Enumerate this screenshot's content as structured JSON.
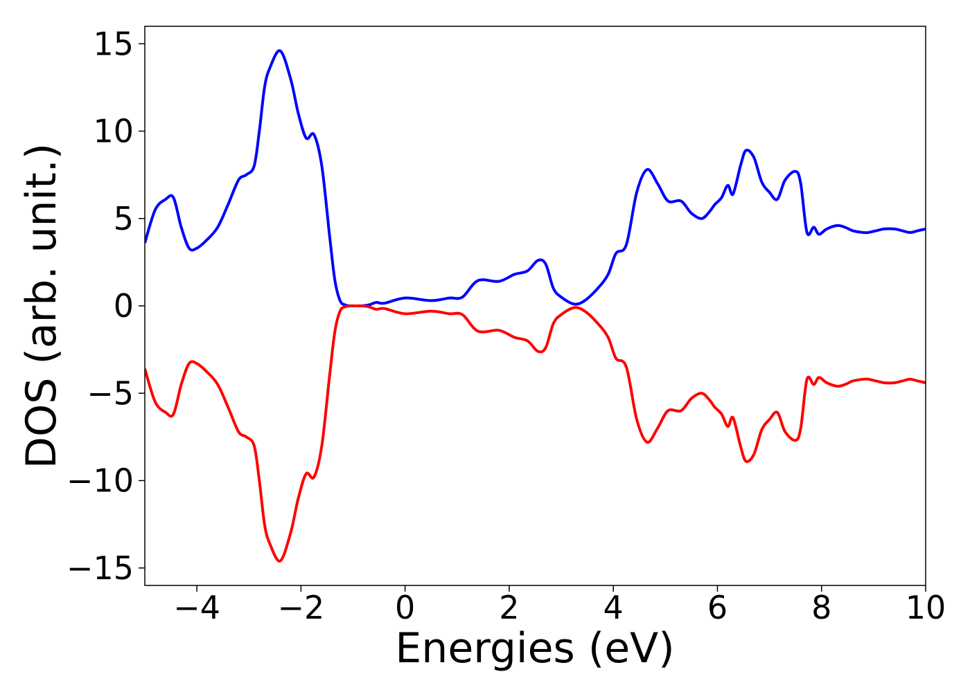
{
  "chart_data": {
    "type": "line",
    "xlabel": "Energies (eV)",
    "ylabel": "DOS (arb. unit.)",
    "xlim": [
      -5,
      10
    ],
    "ylim": [
      -16,
      16
    ],
    "grid": false,
    "x_ticks": [
      -4,
      -2,
      0,
      2,
      4,
      6,
      8,
      10
    ],
    "x_tick_labels": [
      "−4",
      "−2",
      "0",
      "2",
      "4",
      "6",
      "8",
      "10"
    ],
    "y_ticks": [
      15,
      10,
      5,
      0,
      -5,
      -10,
      -15
    ],
    "y_tick_labels": [
      "15",
      "10",
      "5",
      "0",
      "−5",
      "−10",
      "−15"
    ],
    "series": [
      {
        "color": "#0000ff",
        "x": [
          -5.0,
          -4.8,
          -4.6,
          -4.45,
          -4.3,
          -4.15,
          -4.0,
          -3.8,
          -3.6,
          -3.4,
          -3.2,
          -3.05,
          -2.9,
          -2.8,
          -2.7,
          -2.6,
          -2.4,
          -2.2,
          -2.05,
          -1.9,
          -1.75,
          -1.6,
          -1.45,
          -1.35,
          -1.25,
          -1.15,
          -1.05,
          -0.95,
          -0.85,
          -0.7,
          -0.55,
          -0.4,
          0.0,
          0.5,
          0.85,
          1.1,
          1.4,
          1.8,
          2.1,
          2.35,
          2.55,
          2.7,
          2.85,
          3.0,
          3.25,
          3.45,
          3.7,
          3.9,
          4.05,
          4.25,
          4.45,
          4.65,
          4.85,
          5.05,
          5.3,
          5.5,
          5.7,
          5.85,
          5.95,
          6.08,
          6.2,
          6.3,
          6.45,
          6.55,
          6.7,
          6.85,
          7.0,
          7.15,
          7.3,
          7.5,
          7.6,
          7.72,
          7.85,
          7.95,
          8.1,
          8.3,
          8.45,
          8.6,
          8.8,
          8.9,
          9.05,
          9.2,
          9.4,
          9.55,
          9.7,
          9.85,
          10.0
        ],
        "y": [
          3.6,
          5.5,
          6.1,
          6.2,
          4.5,
          3.3,
          3.3,
          3.8,
          4.5,
          5.8,
          7.2,
          7.5,
          8.0,
          10.0,
          12.5,
          13.6,
          14.6,
          13.0,
          11.0,
          9.6,
          9.8,
          8.0,
          4.0,
          1.5,
          0.3,
          0.05,
          0.0,
          0.0,
          0.0,
          0.05,
          0.2,
          0.15,
          0.45,
          0.3,
          0.45,
          0.5,
          1.45,
          1.4,
          1.8,
          2.0,
          2.6,
          2.4,
          1.0,
          0.5,
          0.1,
          0.3,
          1.0,
          1.8,
          3.0,
          3.5,
          6.5,
          7.8,
          7.0,
          6.0,
          6.0,
          5.3,
          5.0,
          5.4,
          5.8,
          6.2,
          6.9,
          6.4,
          8.1,
          8.9,
          8.5,
          7.1,
          6.5,
          6.1,
          7.2,
          7.7,
          7.0,
          4.2,
          4.5,
          4.1,
          4.4,
          4.6,
          4.5,
          4.3,
          4.2,
          4.2,
          4.3,
          4.4,
          4.4,
          4.3,
          4.2,
          4.3,
          4.4
        ]
      },
      {
        "color": "#ff0000",
        "x": [
          -5.0,
          -4.8,
          -4.6,
          -4.45,
          -4.3,
          -4.15,
          -4.0,
          -3.8,
          -3.6,
          -3.4,
          -3.2,
          -3.05,
          -2.9,
          -2.8,
          -2.7,
          -2.6,
          -2.4,
          -2.2,
          -2.05,
          -1.9,
          -1.75,
          -1.6,
          -1.45,
          -1.35,
          -1.25,
          -1.15,
          -1.05,
          -0.95,
          -0.85,
          -0.7,
          -0.55,
          -0.4,
          0.0,
          0.5,
          0.85,
          1.1,
          1.4,
          1.8,
          2.1,
          2.35,
          2.55,
          2.7,
          2.85,
          3.0,
          3.25,
          3.45,
          3.7,
          3.9,
          4.05,
          4.25,
          4.45,
          4.65,
          4.85,
          5.05,
          5.3,
          5.5,
          5.7,
          5.85,
          5.95,
          6.08,
          6.2,
          6.3,
          6.45,
          6.55,
          6.7,
          6.85,
          7.0,
          7.15,
          7.3,
          7.5,
          7.6,
          7.72,
          7.85,
          7.95,
          8.1,
          8.3,
          8.45,
          8.6,
          8.8,
          8.9,
          9.05,
          9.2,
          9.4,
          9.55,
          9.7,
          9.85,
          10.0
        ],
        "y": [
          -3.6,
          -5.5,
          -6.1,
          -6.2,
          -4.5,
          -3.3,
          -3.3,
          -3.8,
          -4.5,
          -5.8,
          -7.2,
          -7.5,
          -8.0,
          -10.0,
          -12.5,
          -13.6,
          -14.6,
          -13.0,
          -11.0,
          -9.6,
          -9.8,
          -8.0,
          -4.0,
          -1.5,
          -0.3,
          -0.05,
          0.0,
          0.0,
          0.0,
          -0.05,
          -0.2,
          -0.15,
          -0.45,
          -0.3,
          -0.45,
          -0.5,
          -1.45,
          -1.4,
          -1.8,
          -2.0,
          -2.6,
          -2.4,
          -1.0,
          -0.5,
          -0.1,
          -0.3,
          -1.0,
          -1.8,
          -3.0,
          -3.5,
          -6.5,
          -7.8,
          -7.0,
          -6.0,
          -6.0,
          -5.3,
          -5.0,
          -5.4,
          -5.8,
          -6.2,
          -6.9,
          -6.4,
          -8.1,
          -8.9,
          -8.5,
          -7.1,
          -6.5,
          -6.1,
          -7.2,
          -7.7,
          -7.0,
          -4.2,
          -4.5,
          -4.1,
          -4.4,
          -4.6,
          -4.5,
          -4.3,
          -4.2,
          -4.2,
          -4.3,
          -4.4,
          -4.4,
          -4.3,
          -4.2,
          -4.3,
          -4.4
        ]
      }
    ]
  }
}
